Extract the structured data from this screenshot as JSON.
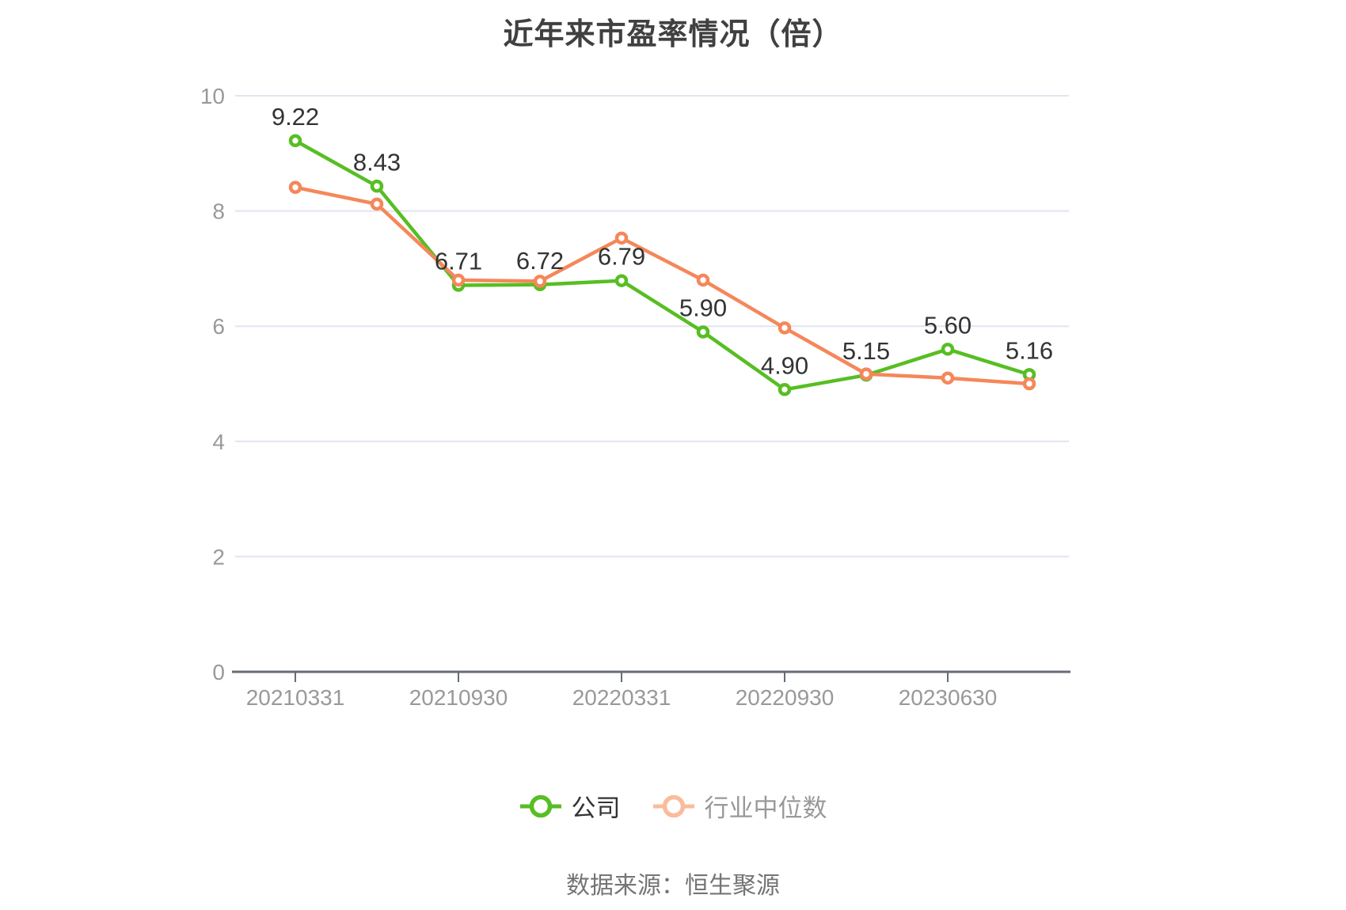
{
  "title": "近年来市盈率情况（倍）",
  "footer": {
    "source_label": "数据来源：恒生聚源"
  },
  "legend": {
    "items": [
      {
        "label": "公司",
        "marker_color": "#57BE23",
        "text_color": "#333333"
      },
      {
        "label": "行业中位数",
        "marker_color": "#F9BC9C",
        "text_color": "#999999"
      }
    ]
  },
  "colors": {
    "company_line": "#57BE23",
    "industry_line": "#F5875A",
    "grid_line": "#E2E5F0",
    "axis_line": "#666B77",
    "axis_label": "#999999",
    "data_label": "#333333",
    "title": "#404040"
  },
  "chart_data": {
    "type": "line",
    "title": "近年来市盈率情况（倍）",
    "num_points": 10,
    "x_tick_labels": [
      "20210331",
      "20210930",
      "20220331",
      "20220930",
      "20230630"
    ],
    "x_tick_indices": [
      0,
      2,
      4,
      6,
      8
    ],
    "y_ticks": [
      0,
      2,
      4,
      6,
      8,
      10
    ],
    "ylim": [
      0,
      10
    ],
    "grid": true,
    "legend_position": "bottom",
    "series": [
      {
        "name": "公司",
        "color": "#57BE23",
        "show_labels": true,
        "values": [
          9.22,
          8.43,
          6.71,
          6.72,
          6.79,
          5.9,
          4.9,
          5.15,
          5.6,
          5.16
        ],
        "labels": [
          "9.22",
          "8.43",
          "6.71",
          "6.72",
          "6.79",
          "5.90",
          "4.90",
          "5.15",
          "5.60",
          "5.16"
        ]
      },
      {
        "name": "行业中位数",
        "color": "#F5875A",
        "show_labels": false,
        "values": [
          8.41,
          8.12,
          6.8,
          6.78,
          7.53,
          6.8,
          5.97,
          5.17,
          5.1,
          5.0
        ],
        "labels": []
      }
    ]
  }
}
